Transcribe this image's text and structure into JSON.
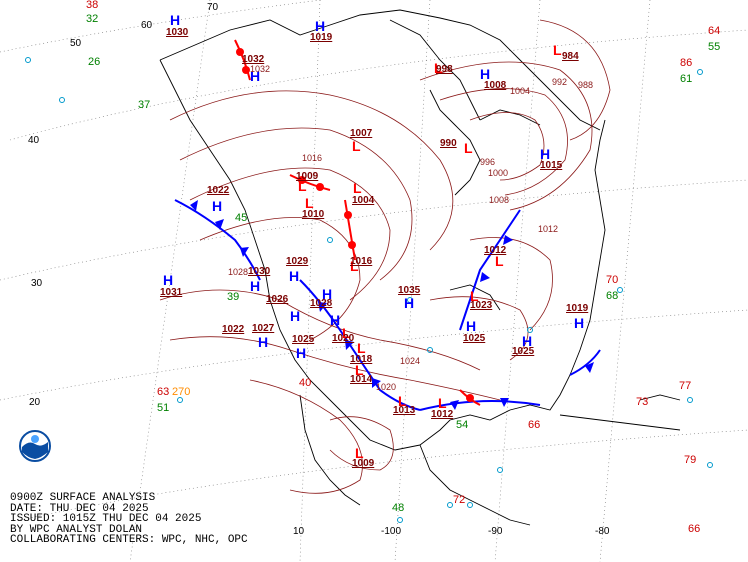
{
  "footer": {
    "line1": "0900Z SURFACE ANALYSIS",
    "line2": "DATE: THU DEC 04 2025",
    "line3": "ISSUED: 1015Z THU DEC 04 2025",
    "line4": "BY WPC ANALYST DOLAN",
    "line5": "COLLABORATING CENTERS: WPC, NHC, OPC"
  },
  "grid_labels": {
    "lat_70": "70",
    "lat_60": "60",
    "lat_50": "50",
    "lat_40": "40",
    "lat_30": "30",
    "lat_20": "20",
    "lat_10": "10",
    "lon_100": "-100",
    "lon_90": "-90",
    "lon_80": "-80"
  },
  "colors": {
    "high": "#0000ff",
    "low": "#ff0000",
    "pressure_label": "#7a0000",
    "isobar": "#8b1a1a",
    "cold_front": "#0000ff",
    "warm_front": "#ff0000",
    "temperature": "#cc0000",
    "dewpoint": "#008000",
    "station": "#0099cc",
    "land_outline": "#000000"
  },
  "highs": [
    {
      "letter": "H",
      "pressure": "1030"
    },
    {
      "letter": "H",
      "pressure": "1019"
    },
    {
      "letter": "H",
      "pressure": "1032"
    },
    {
      "letter": "H",
      "pressure": "1008"
    },
    {
      "letter": "H",
      "pressure": "1022"
    },
    {
      "letter": "H",
      "pressure": "1031"
    },
    {
      "letter": "H",
      "pressure": "1029"
    },
    {
      "letter": "H",
      "pressure": "1030"
    },
    {
      "letter": "H",
      "pressure": "1026"
    },
    {
      "letter": "H",
      "pressure": "1028"
    },
    {
      "letter": "H",
      "pressure": "1027"
    },
    {
      "letter": "H",
      "pressure": "1025"
    },
    {
      "letter": "H",
      "pressure": "1025"
    },
    {
      "letter": "H",
      "pressure": "1035"
    },
    {
      "letter": "H",
      "pressure": "1025"
    },
    {
      "letter": "H",
      "pressure": "1022"
    },
    {
      "letter": "H",
      "pressure": "1019"
    },
    {
      "letter": "H",
      "pressure": "1015"
    }
  ],
  "lows": [
    {
      "letter": "L",
      "pressure": "984"
    },
    {
      "letter": "L",
      "pressure": "990"
    },
    {
      "letter": "L",
      "pressure": "998"
    },
    {
      "letter": "L",
      "pressure": "1007"
    },
    {
      "letter": "L",
      "pressure": "1009"
    },
    {
      "letter": "L",
      "pressure": "1004"
    },
    {
      "letter": "L",
      "pressure": "1010"
    },
    {
      "letter": "L",
      "pressure": "1016"
    },
    {
      "letter": "L",
      "pressure": "1012"
    },
    {
      "letter": "L",
      "pressure": "1014"
    },
    {
      "letter": "L",
      "pressure": "1013"
    },
    {
      "letter": "L",
      "pressure": "1012"
    },
    {
      "letter": "L",
      "pressure": "1009"
    },
    {
      "letter": "L",
      "pressure": "1018"
    },
    {
      "letter": "L",
      "pressure": "1023"
    },
    {
      "letter": "L",
      "pressure": "1020"
    }
  ],
  "isobar_values": [
    "1016",
    "1012",
    "1008",
    "1004",
    "1000",
    "996",
    "992",
    "988",
    "1020",
    "1024",
    "1028",
    "1032"
  ],
  "station_values": [
    "38",
    "32",
    "26",
    "37",
    "45",
    "39",
    "40",
    "63",
    "270",
    "51",
    "70",
    "68",
    "77",
    "66",
    "73",
    "64",
    "55",
    "61",
    "86",
    "54",
    "72",
    "48",
    "79",
    "66"
  ]
}
